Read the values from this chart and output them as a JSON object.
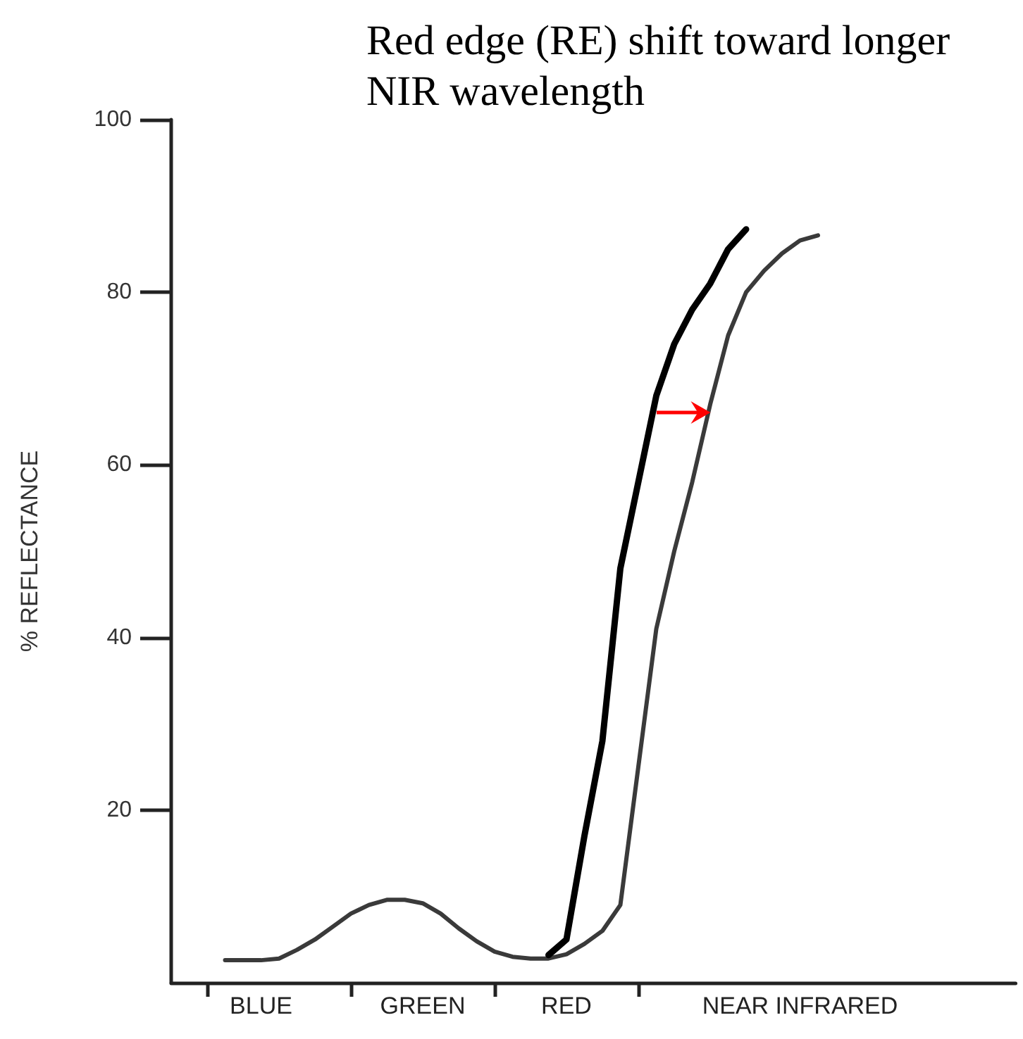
{
  "chart_data": {
    "type": "line",
    "title": "Red edge (RE) shift toward longer NIR wavelength",
    "ylabel": "% REFLECTANCE",
    "categories": [
      null,
      null,
      null,
      null,
      null,
      "BLUE",
      null,
      null,
      null,
      null,
      null,
      null,
      null,
      null,
      "GREEN",
      null,
      null,
      null,
      null,
      null,
      null,
      null,
      "RED",
      null,
      null,
      null,
      null,
      null,
      null,
      null,
      null,
      null,
      null,
      null,
      null,
      "NEAR INFRARED",
      null,
      null,
      null,
      null,
      null,
      null,
      null,
      null,
      null,
      null,
      null,
      null
    ],
    "series": [
      {
        "color": "#3a3a3a",
        "values": [
          null,
          null,
          null,
          2.6,
          2.6,
          2.6,
          2.8,
          3.8,
          5,
          6.5,
          8,
          9,
          9.6,
          9.6,
          9.2,
          8,
          6.3,
          4.8,
          3.6,
          3,
          2.8,
          2.8,
          3.3,
          4.5,
          6,
          9,
          25,
          41,
          50,
          58,
          67,
          75,
          80,
          82.5,
          84.5,
          86,
          86.6,
          null,
          null,
          null,
          null,
          null,
          null,
          null,
          null,
          null,
          null,
          null
        ]
      },
      {
        "color": "#000000",
        "values": [
          null,
          null,
          null,
          null,
          null,
          null,
          null,
          null,
          null,
          null,
          null,
          null,
          null,
          null,
          null,
          null,
          null,
          null,
          null,
          null,
          null,
          3.2,
          5,
          17,
          28,
          48,
          58,
          68,
          74,
          78,
          81,
          85,
          87.3,
          null,
          null,
          null,
          null,
          null,
          null,
          null,
          null,
          null,
          null,
          null,
          null,
          null,
          null,
          null
        ]
      }
    ],
    "ylim": [
      0,
      100
    ],
    "yticks": [
      20,
      40,
      60,
      80,
      100
    ],
    "grid": false,
    "marker": "none",
    "line_style": "solid"
  }
}
